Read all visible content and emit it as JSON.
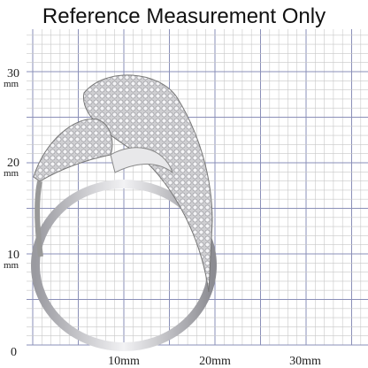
{
  "header": {
    "title": "Reference Measurement Only"
  },
  "y_labels": [
    {
      "number": "30",
      "unit": "mm"
    },
    {
      "number": "20",
      "unit": "mm"
    },
    {
      "number": "10",
      "unit": "mm"
    },
    {
      "number": "0"
    }
  ],
  "x_labels": [
    "10mm",
    "20mm",
    "30mm"
  ]
}
